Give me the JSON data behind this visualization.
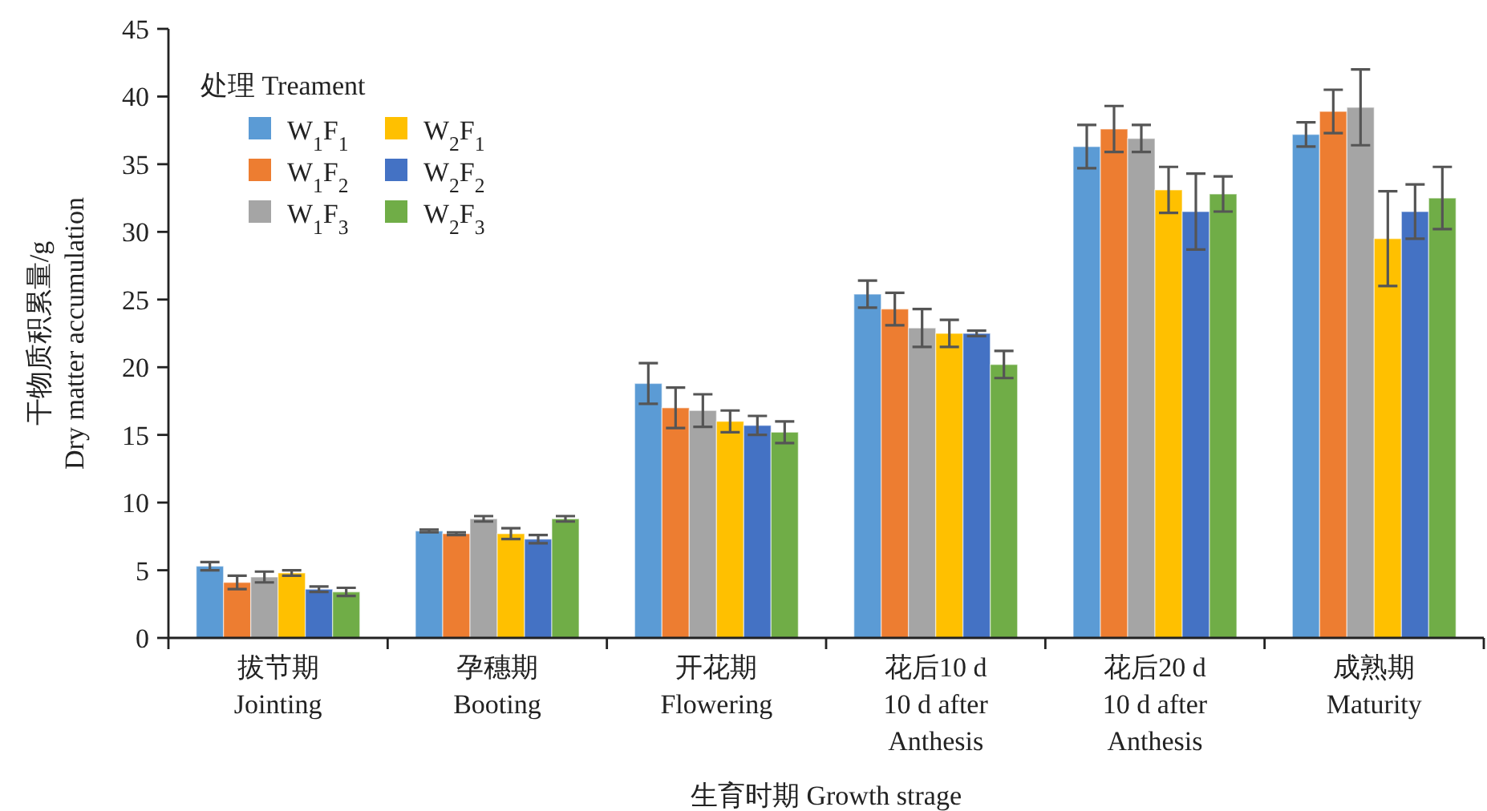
{
  "chart_data": {
    "type": "bar",
    "ylabel": "干物质积累量/g Dry matter accumulation",
    "xlabel": "生育时期 Growth strage",
    "legend_title": "处理 Treament",
    "legend": "top left",
    "grid": false,
    "categories": [
      "拔节期\nJointing",
      "孕穗期\nBooting",
      "开花期\nFlowering",
      "花后10 d\n10 d after\nAnthesis",
      "花后20 d\n10 d after\nAnthesis",
      "成熟期\nMaturity"
    ],
    "ylim": [
      0,
      45
    ],
    "yticks": [
      0,
      5,
      10,
      15,
      20,
      25,
      30,
      35,
      40,
      45
    ],
    "series": [
      {
        "name": "W$_{1}$F$_{1}$",
        "color": "#5b9bd5",
        "values": [
          5.3,
          7.9,
          18.8,
          25.4,
          36.3,
          37.2
        ],
        "errors": [
          0.3,
          0.1,
          1.5,
          1.0,
          1.6,
          0.9
        ]
      },
      {
        "name": "W$_{1}$F$_{2}$",
        "color": "#ed7d31",
        "values": [
          4.1,
          7.7,
          17.0,
          24.3,
          37.6,
          38.9
        ],
        "errors": [
          0.5,
          0.1,
          1.5,
          1.2,
          1.7,
          1.6
        ]
      },
      {
        "name": "W$_{1}$F$_{3}$",
        "color": "#a5a5a5",
        "values": [
          4.5,
          8.8,
          16.8,
          22.9,
          36.9,
          39.2
        ],
        "errors": [
          0.4,
          0.2,
          1.2,
          1.4,
          1.0,
          2.8
        ]
      },
      {
        "name": "W$_{2}$F$_{1}$",
        "color": "#ffc000",
        "values": [
          4.8,
          7.7,
          16.0,
          22.5,
          33.1,
          29.5
        ],
        "errors": [
          0.2,
          0.4,
          0.8,
          1.0,
          1.7,
          3.5
        ]
      },
      {
        "name": "W$_{2}$F$_{2}$",
        "color": "#4472c4",
        "values": [
          3.6,
          7.3,
          15.7,
          22.5,
          31.5,
          31.5
        ],
        "errors": [
          0.2,
          0.3,
          0.7,
          0.2,
          2.8,
          2.0
        ]
      },
      {
        "name": "W$_{2}$F$_{3}$",
        "color": "#70ad47",
        "values": [
          3.4,
          8.8,
          15.2,
          20.2,
          32.8,
          32.5
        ],
        "errors": [
          0.3,
          0.2,
          0.8,
          1.0,
          1.3,
          2.3
        ]
      }
    ]
  }
}
